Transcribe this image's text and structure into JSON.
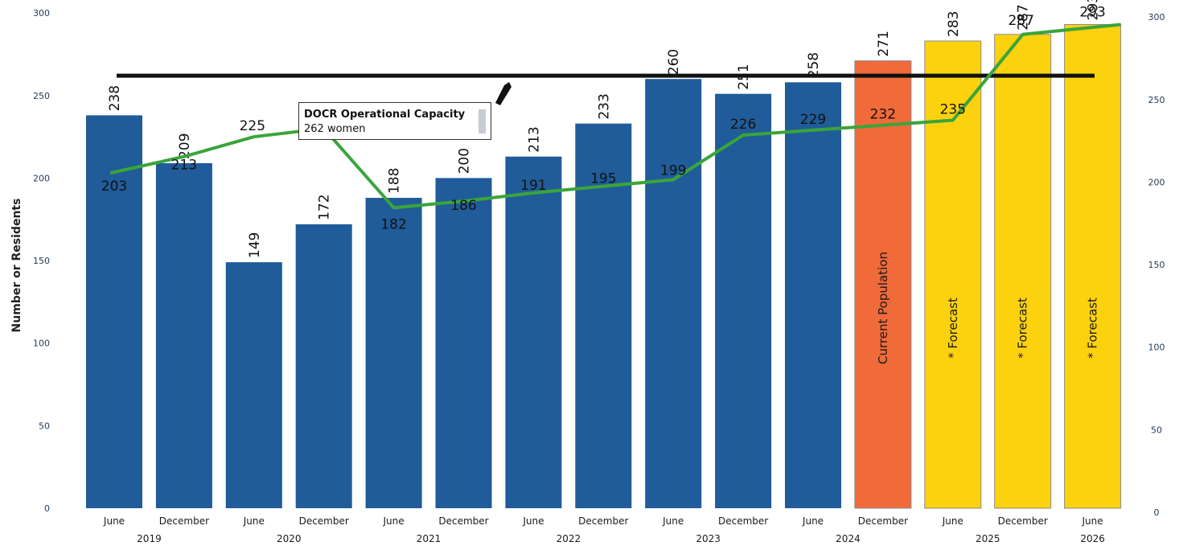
{
  "chart_data": {
    "type": "bar",
    "ylabel": "Number or Residents",
    "ylim": [
      0,
      300
    ],
    "yticks": [
      0,
      50,
      100,
      150,
      200,
      250,
      300
    ],
    "y2ticks": [
      0,
      50,
      100,
      150,
      200,
      250,
      300
    ],
    "categories": [
      "June",
      "December",
      "June",
      "December",
      "June",
      "December",
      "June",
      "December",
      "June",
      "December",
      "June",
      "December",
      "June",
      "December",
      "June"
    ],
    "years": [
      {
        "label": "2019",
        "span": [
          0,
          1
        ]
      },
      {
        "label": "2020",
        "span": [
          2,
          3
        ]
      },
      {
        "label": "2021",
        "span": [
          4,
          5
        ]
      },
      {
        "label": "2022",
        "span": [
          6,
          7
        ]
      },
      {
        "label": "2023",
        "span": [
          8,
          9
        ]
      },
      {
        "label": "2024",
        "span": [
          10,
          11
        ]
      },
      {
        "label": "2025",
        "span": [
          12,
          13
        ]
      },
      {
        "label": "2026",
        "span": [
          14,
          14
        ]
      }
    ],
    "series": [
      {
        "type": "bar",
        "values": [
          238,
          209,
          149,
          172,
          188,
          200,
          213,
          233,
          260,
          251,
          258,
          271,
          283,
          287,
          293
        ]
      },
      {
        "type": "line",
        "values": [
          203,
          213,
          225,
          230,
          182,
          186,
          191,
          195,
          199,
          226,
          229,
          232,
          235,
          287,
          293
        ]
      }
    ],
    "line_labels": [
      "203",
      "213",
      "225",
      "",
      "182",
      "186",
      "191",
      "195",
      "199",
      "226",
      "229",
      "232",
      "235",
      "287",
      "293"
    ],
    "bar_kinds": [
      "actual",
      "actual",
      "actual",
      "actual",
      "actual",
      "actual",
      "actual",
      "actual",
      "actual",
      "actual",
      "actual",
      "current",
      "forecast",
      "forecast",
      "forecast"
    ],
    "in_bar_labels": [
      "",
      "",
      "",
      "",
      "",
      "",
      "",
      "",
      "",
      "",
      "",
      "Current Population",
      "* Forecast",
      "* Forecast",
      "* Forecast"
    ],
    "capacity": {
      "value": 262,
      "title": "DOCR Operational Capacity",
      "subtitle": "262 women"
    },
    "colors": {
      "actual": "#1f5c99",
      "current": "#f06a3a",
      "forecast": "#fcd20f",
      "line": "#3aa53a",
      "capacity": "#111111"
    }
  }
}
